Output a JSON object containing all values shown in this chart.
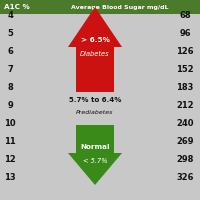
{
  "title_left": "A1C %",
  "title_right": "Average Blood Sugar mg/dL",
  "background_color": "#c8c8c8",
  "header_color": "#4a7a2a",
  "header_text_color": "#ffffff",
  "a1c_values": [
    4,
    5,
    6,
    7,
    8,
    9,
    10,
    11,
    12,
    13
  ],
  "sugar_values": [
    68,
    96,
    126,
    152,
    183,
    212,
    240,
    269,
    298,
    326
  ],
  "red_arrow_label1": "> 6.5%",
  "red_arrow_label2": "Diabetes",
  "prediabetes_label1": "5.7% to 6.4%",
  "prediabetes_label2": "Prediabetes",
  "green_arrow_label1": "Normal",
  "green_arrow_label2": "< 5.7%",
  "red_color": "#cc1111",
  "green_color": "#3a8a1a",
  "text_color": "#111111",
  "figsize": [
    2.0,
    2.0
  ],
  "dpi": 100
}
